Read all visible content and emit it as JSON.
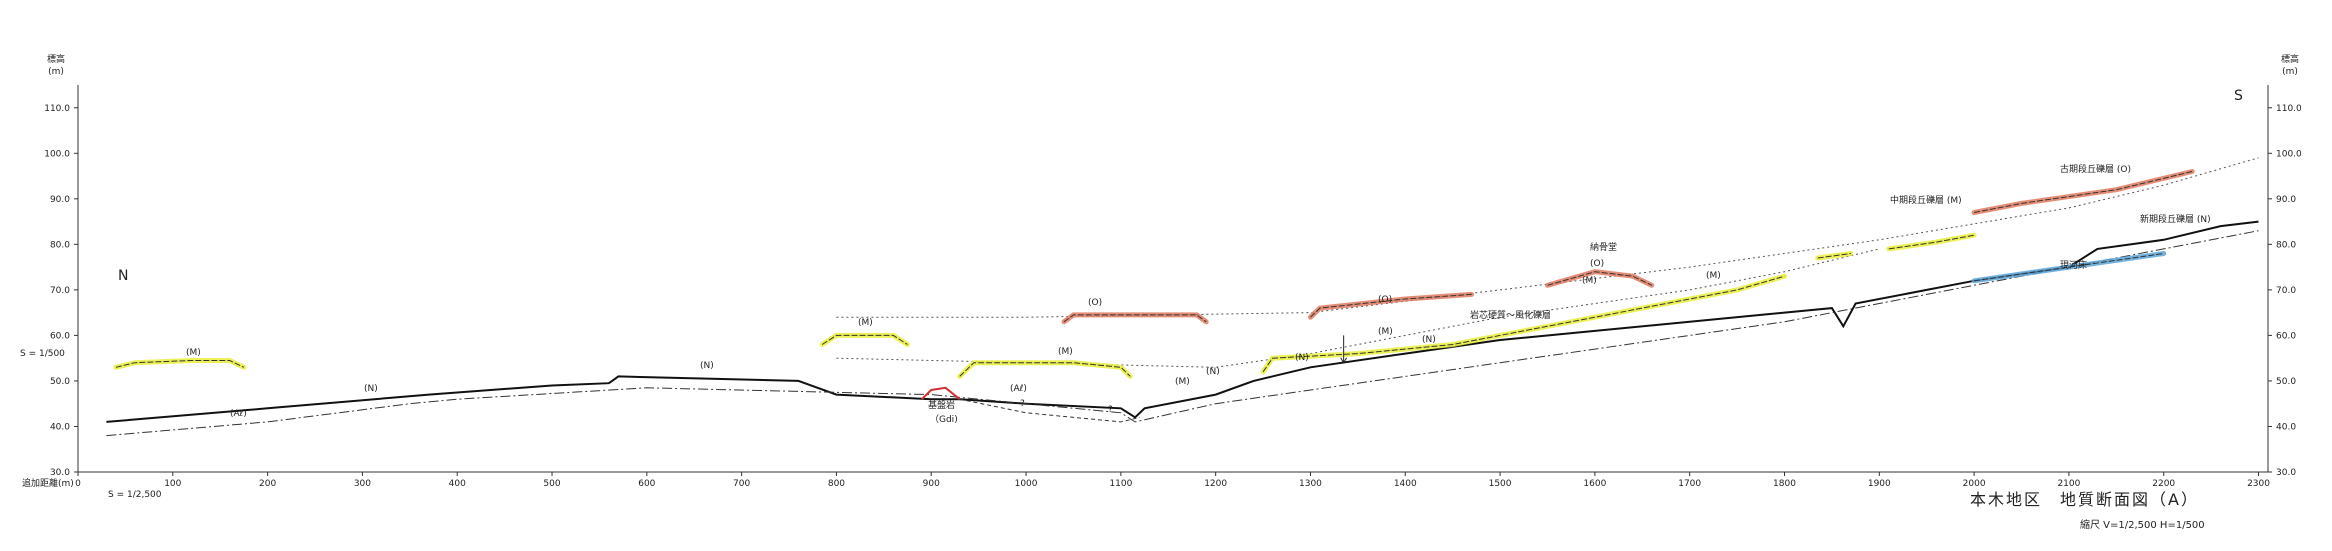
{
  "chart_data": {
    "type": "line",
    "title": "本木地区　地質断面図（A）",
    "scale_note": "縮尺  V=1/2,500  H=1/500",
    "ylabel": "標高",
    "yunit": "(m)",
    "xlabel": "追加距離(m)",
    "left_scale": "S = 1/500",
    "bottom_scale": "S = 1/2,500",
    "ylim": [
      30,
      115
    ],
    "xlim": [
      0,
      2310
    ],
    "y_ticks": [
      "30.0",
      "40.0",
      "50.0",
      "60.0",
      "70.0",
      "80.0",
      "90.0",
      "100.0",
      "110.0"
    ],
    "x_ticks": [
      "0",
      "100",
      "200",
      "300",
      "400",
      "500",
      "600",
      "700",
      "800",
      "900",
      "1000",
      "1100",
      "1200",
      "1300",
      "1400",
      "1500",
      "1600",
      "1700",
      "1800",
      "1900",
      "2000",
      "2100",
      "2200",
      "2300"
    ],
    "direction_left": "N",
    "direction_right": "S",
    "series": [
      {
        "role": "ground",
        "points": [
          [
            30,
            41
          ],
          [
            200,
            44
          ],
          [
            370,
            47
          ],
          [
            500,
            49
          ],
          [
            560,
            49.5
          ],
          [
            570,
            51
          ],
          [
            760,
            50
          ],
          [
            800,
            47
          ],
          [
            900,
            46
          ],
          [
            930,
            46
          ],
          [
            1000,
            45
          ],
          [
            1100,
            44
          ],
          [
            1115,
            42
          ],
          [
            1125,
            44
          ],
          [
            1200,
            47
          ],
          [
            1240,
            50
          ],
          [
            1300,
            53
          ],
          [
            1400,
            56
          ],
          [
            1500,
            59
          ],
          [
            1600,
            61
          ],
          [
            1700,
            63
          ],
          [
            1800,
            65
          ],
          [
            1850,
            66
          ],
          [
            1862,
            62
          ],
          [
            1875,
            67
          ],
          [
            1950,
            70
          ],
          [
            2000,
            72
          ],
          [
            2100,
            75
          ],
          [
            2130,
            79
          ],
          [
            2200,
            81
          ],
          [
            2260,
            84
          ],
          [
            2300,
            85
          ]
        ]
      },
      {
        "role": "base",
        "points": [
          [
            30,
            38
          ],
          [
            200,
            41
          ],
          [
            350,
            45
          ],
          [
            400,
            46
          ],
          [
            600,
            48.5
          ],
          [
            900,
            47
          ],
          [
            1000,
            45
          ],
          [
            1100,
            43
          ],
          [
            1115,
            41
          ],
          [
            1200,
            45
          ],
          [
            1300,
            48
          ],
          [
            1400,
            51
          ],
          [
            1500,
            54
          ],
          [
            1600,
            57
          ],
          [
            1700,
            60
          ],
          [
            1800,
            63
          ],
          [
            1900,
            67
          ],
          [
            2000,
            71
          ],
          [
            2100,
            75
          ],
          [
            2200,
            79
          ],
          [
            2300,
            83
          ]
        ]
      },
      {
        "role": "old_surface",
        "points": [
          [
            800,
            64
          ],
          [
            1000,
            64
          ],
          [
            1300,
            65
          ],
          [
            1500,
            70
          ],
          [
            1700,
            75
          ],
          [
            1900,
            81
          ],
          [
            2100,
            88
          ],
          [
            2200,
            93
          ],
          [
            2300,
            99
          ]
        ]
      },
      {
        "role": "mid_surface",
        "points": [
          [
            800,
            55
          ],
          [
            1000,
            54
          ],
          [
            1200,
            53
          ],
          [
            1300,
            56
          ],
          [
            1400,
            60
          ],
          [
            1500,
            64
          ],
          [
            1600,
            67
          ],
          [
            1700,
            70
          ],
          [
            1800,
            74
          ],
          [
            1900,
            79
          ]
        ]
      }
    ],
    "deposits": [
      {
        "label": "(M)",
        "color": "#e9ee3a",
        "points": [
          [
            40,
            53
          ],
          [
            60,
            54
          ],
          [
            120,
            54.5
          ],
          [
            160,
            54.5
          ],
          [
            175,
            53
          ]
        ]
      },
      {
        "label": "(M)",
        "color": "#e9ee3a",
        "points": [
          [
            785,
            58
          ],
          [
            800,
            60
          ],
          [
            860,
            60
          ],
          [
            875,
            58
          ]
        ]
      },
      {
        "label": "(M)",
        "color": "#e9ee3a",
        "points": [
          [
            930,
            51
          ],
          [
            945,
            54
          ],
          [
            1050,
            54
          ],
          [
            1100,
            53
          ],
          [
            1110,
            51
          ]
        ]
      },
      {
        "label": "(M)",
        "color": "#e9ee3a",
        "points": [
          [
            1250,
            52
          ],
          [
            1260,
            55
          ],
          [
            1350,
            56
          ],
          [
            1450,
            58
          ],
          [
            1550,
            62
          ],
          [
            1650,
            66
          ],
          [
            1700,
            68
          ],
          [
            1750,
            70
          ],
          [
            1800,
            73
          ]
        ]
      },
      {
        "label": "",
        "color": "#e9ee3a",
        "points": [
          [
            1835,
            77
          ],
          [
            1870,
            78
          ]
        ]
      },
      {
        "label": "(M)",
        "color": "#e9ee3a",
        "points": [
          [
            1910,
            79
          ],
          [
            1960,
            80.5
          ],
          [
            2000,
            82
          ]
        ]
      },
      {
        "label": "(O)",
        "color": "#e07a5f",
        "points": [
          [
            1040,
            63
          ],
          [
            1050,
            64.5
          ],
          [
            1180,
            64.5
          ],
          [
            1190,
            63
          ]
        ]
      },
      {
        "label": "(O)",
        "color": "#e07a5f",
        "points": [
          [
            1300,
            64
          ],
          [
            1310,
            66
          ],
          [
            1400,
            68
          ],
          [
            1470,
            69
          ]
        ]
      },
      {
        "label": "(O)",
        "color": "#e07a5f",
        "points": [
          [
            1550,
            71
          ],
          [
            1600,
            74
          ],
          [
            1640,
            73
          ],
          [
            1660,
            71
          ]
        ]
      },
      {
        "label": "(O)",
        "color": "#e07a5f",
        "points": [
          [
            2000,
            87
          ],
          [
            2050,
            89
          ],
          [
            2150,
            92
          ],
          [
            2230,
            96
          ]
        ]
      },
      {
        "label": "(N)",
        "color": "#5aa3d8",
        "points": [
          [
            2000,
            72
          ],
          [
            2100,
            75
          ],
          [
            2200,
            78
          ]
        ]
      }
    ]
  },
  "labels": {
    "n1": "(N)",
    "n2": "(N)",
    "n3": "(N)",
    "n4": "(N)",
    "n5": "(N)",
    "al1": "(Aℓ)",
    "al2": "(Aℓ)",
    "m1": "(M)",
    "m2": "(M)",
    "m3": "(M)",
    "m4": "(M)",
    "m5": "(M)",
    "m6": "(M)",
    "m7": "(M)",
    "o1": "(O)",
    "o2": "(O)",
    "o3": "(O)",
    "bedrock": "基盤岩",
    "gdi": "（Gdi)",
    "kanzen": "納骨堂",
    "mid_terrace": "中期段丘礫層 (M)",
    "old_terrace": "古期段丘礫層 (O)",
    "new_terrace": "新期段丘礫層 (N)",
    "river_bed": "現河床",
    "weathered": "岩芯硬質〜風化礫層",
    "q1": "?",
    "q2": "?"
  }
}
